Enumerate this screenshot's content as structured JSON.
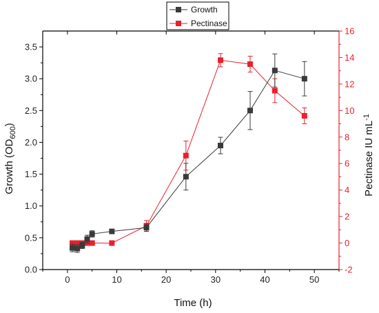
{
  "chart_data": {
    "type": "line",
    "xlabel": "Time (h)",
    "ylabel_left": {
      "base": "Growth (OD",
      "sub": "600",
      "suffix": ")"
    },
    "ylabel_right": {
      "base": "Pectinase IU mL",
      "sup": "-1"
    },
    "xlim": [
      -5,
      55
    ],
    "ylim_left": [
      0,
      3.75
    ],
    "ylim_right": [
      -2,
      16
    ],
    "x_ticks": [
      "0",
      "10",
      "20",
      "30",
      "40",
      "50"
    ],
    "y_left_ticks": [
      "0.0",
      "0.5",
      "1.0",
      "1.5",
      "2.0",
      "2.5",
      "3.0",
      "3.5"
    ],
    "y_right_ticks": [
      "-2",
      "0",
      "2",
      "4",
      "6",
      "8",
      "10",
      "12",
      "14",
      "16"
    ],
    "legend_position": "top-center",
    "colors": {
      "growth": "#3a3a3a",
      "pectinase": "#e8212a",
      "axis": "#000000"
    },
    "series": [
      {
        "name": "Growth",
        "axis": "left",
        "x": [
          1,
          2,
          3,
          4,
          5,
          9,
          16,
          24,
          31,
          37,
          42,
          48
        ],
        "y": [
          0.34,
          0.33,
          0.38,
          0.48,
          0.56,
          0.6,
          0.66,
          1.46,
          1.95,
          2.5,
          3.13,
          3.0
        ],
        "err": [
          0.06,
          0.06,
          0.05,
          0.06,
          0.05,
          0.03,
          0.06,
          0.21,
          0.13,
          0.3,
          0.26,
          0.27
        ]
      },
      {
        "name": "Pectinase",
        "axis": "right",
        "x": [
          1,
          2,
          3,
          4,
          5,
          9,
          16,
          24,
          31,
          37,
          42,
          48
        ],
        "y": [
          0.0,
          0.0,
          0.0,
          0.0,
          0.0,
          0.0,
          1.3,
          6.6,
          13.8,
          13.5,
          11.5,
          9.6
        ],
        "err": [
          0.15,
          0.15,
          0.15,
          0.15,
          0.15,
          0.1,
          0.4,
          1.1,
          0.5,
          0.6,
          0.9,
          0.6
        ]
      }
    ]
  }
}
